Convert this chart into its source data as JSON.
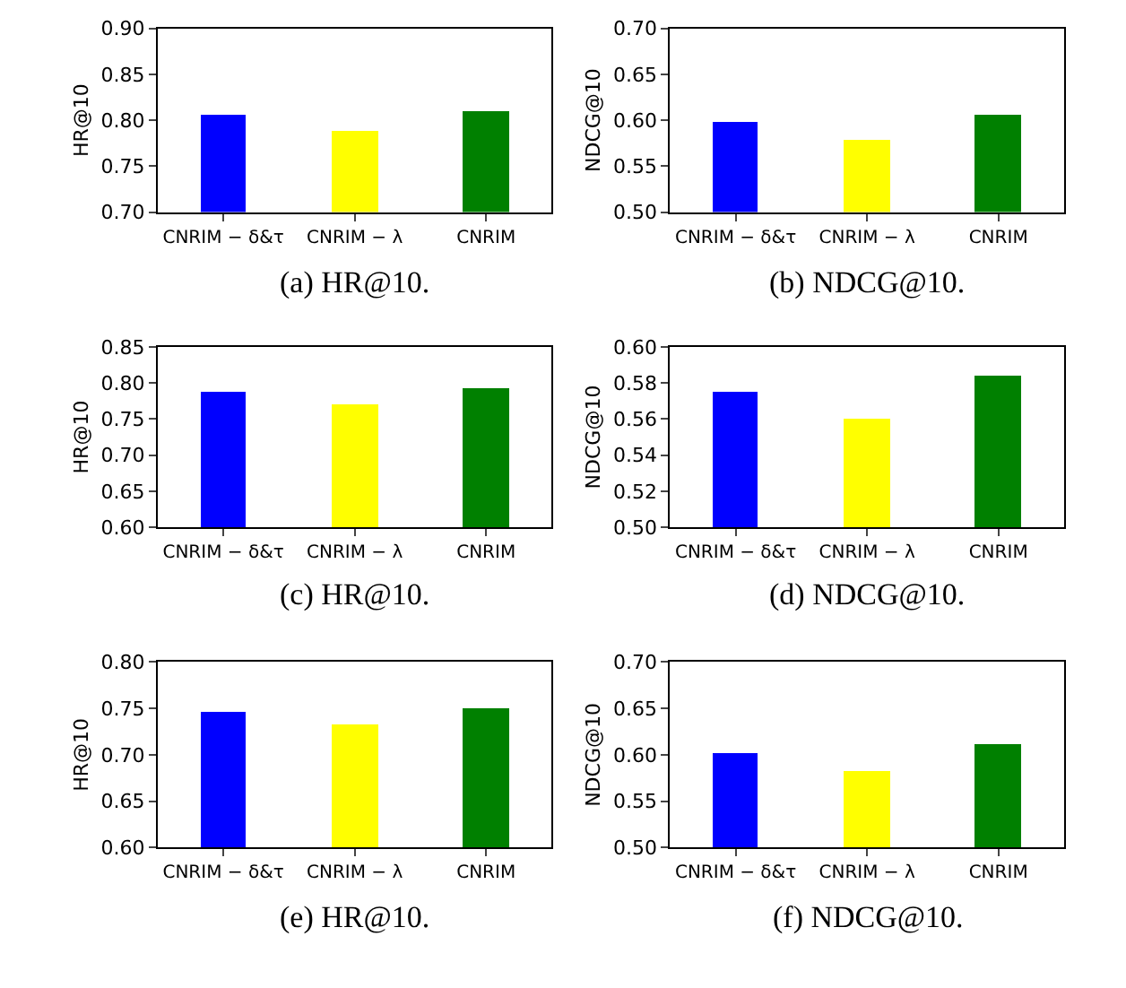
{
  "chart_data": [
    {
      "type": "bar",
      "title": "(a) HR@10.",
      "ylabel": "HR@10",
      "categories": [
        "CNRIM − δ&τ",
        "CNRIM − λ",
        "CNRIM"
      ],
      "values": [
        0.806,
        0.789,
        0.811
      ],
      "colors": [
        "#0000ff",
        "#ffff00",
        "#008000"
      ],
      "ylim": [
        0.7,
        0.9
      ],
      "yticks": [
        {
          "value": 0.7,
          "label": "0.70"
        },
        {
          "value": 0.75,
          "label": "0.75"
        },
        {
          "value": 0.8,
          "label": "0.80"
        },
        {
          "value": 0.85,
          "label": "0.85"
        },
        {
          "value": 0.9,
          "label": "0.90"
        }
      ]
    },
    {
      "type": "bar",
      "title": "(b) NDCG@10.",
      "ylabel": "NDCG@10",
      "categories": [
        "CNRIM − δ&τ",
        "CNRIM − λ",
        "CNRIM"
      ],
      "values": [
        0.598,
        0.58,
        0.607
      ],
      "colors": [
        "#0000ff",
        "#ffff00",
        "#008000"
      ],
      "ylim": [
        0.5,
        0.7
      ],
      "yticks": [
        {
          "value": 0.5,
          "label": "0.50"
        },
        {
          "value": 0.55,
          "label": "0.55"
        },
        {
          "value": 0.6,
          "label": "0.60"
        },
        {
          "value": 0.65,
          "label": "0.65"
        },
        {
          "value": 0.7,
          "label": "0.70"
        }
      ]
    },
    {
      "type": "bar",
      "title": "(c) HR@10.",
      "ylabel": "HR@10",
      "categories": [
        "CNRIM − δ&τ",
        "CNRIM − λ",
        "CNRIM"
      ],
      "values": [
        0.788,
        0.771,
        0.793
      ],
      "colors": [
        "#0000ff",
        "#ffff00",
        "#008000"
      ],
      "ylim": [
        0.6,
        0.85
      ],
      "yticks": [
        {
          "value": 0.6,
          "label": "0.60"
        },
        {
          "value": 0.65,
          "label": "0.65"
        },
        {
          "value": 0.7,
          "label": "0.70"
        },
        {
          "value": 0.75,
          "label": "0.75"
        },
        {
          "value": 0.8,
          "label": "0.80"
        },
        {
          "value": 0.85,
          "label": "0.85"
        }
      ]
    },
    {
      "type": "bar",
      "title": "(d) NDCG@10.",
      "ylabel": "NDCG@10",
      "categories": [
        "CNRIM − δ&τ",
        "CNRIM − λ",
        "CNRIM"
      ],
      "values": [
        0.575,
        0.56,
        0.584
      ],
      "colors": [
        "#0000ff",
        "#ffff00",
        "#008000"
      ],
      "ylim": [
        0.5,
        0.6
      ],
      "yticks": [
        {
          "value": 0.5,
          "label": "0.50"
        },
        {
          "value": 0.52,
          "label": "0.52"
        },
        {
          "value": 0.54,
          "label": "0.54"
        },
        {
          "value": 0.56,
          "label": "0.56"
        },
        {
          "value": 0.58,
          "label": "0.58"
        },
        {
          "value": 0.6,
          "label": "0.60"
        }
      ]
    },
    {
      "type": "bar",
      "title": "(e) HR@10.",
      "ylabel": "HR@10",
      "categories": [
        "CNRIM − δ&τ",
        "CNRIM − λ",
        "CNRIM"
      ],
      "values": [
        0.745,
        0.733,
        0.75
      ],
      "colors": [
        "#0000ff",
        "#ffff00",
        "#008000"
      ],
      "ylim": [
        0.6,
        0.8
      ],
      "yticks": [
        {
          "value": 0.6,
          "label": "0.60"
        },
        {
          "value": 0.65,
          "label": "0.65"
        },
        {
          "value": 0.7,
          "label": "0.70"
        },
        {
          "value": 0.75,
          "label": "0.75"
        },
        {
          "value": 0.8,
          "label": "0.80"
        }
      ]
    },
    {
      "type": "bar",
      "title": "(f) NDCG@10.",
      "ylabel": "NDCG@10",
      "categories": [
        "CNRIM − δ&τ",
        "CNRIM − λ",
        "CNRIM"
      ],
      "values": [
        0.602,
        0.582,
        0.612
      ],
      "colors": [
        "#0000ff",
        "#ffff00",
        "#008000"
      ],
      "ylim": [
        0.5,
        0.7
      ],
      "yticks": [
        {
          "value": 0.5,
          "label": "0.50"
        },
        {
          "value": 0.55,
          "label": "0.55"
        },
        {
          "value": 0.6,
          "label": "0.60"
        },
        {
          "value": 0.65,
          "label": "0.65"
        },
        {
          "value": 0.7,
          "label": "0.70"
        }
      ]
    }
  ]
}
